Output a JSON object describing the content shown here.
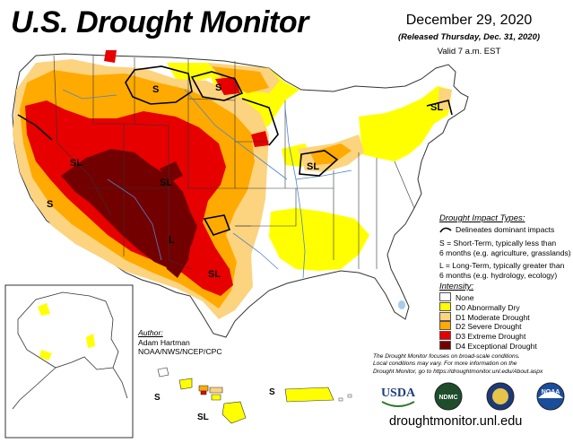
{
  "header": {
    "title": "U.S. Drought Monitor",
    "date": "December 29, 2020",
    "released": "(Released Thursday, Dec. 31, 2020)",
    "valid": "Valid 7 a.m. EST"
  },
  "map_labels": {
    "s_montana": "S",
    "s_northdakota": "S",
    "sl_west": "SL",
    "sl_colorado": "SL",
    "s_california": "S",
    "l_southwest": "L",
    "sl_texas": "SL",
    "sl_indiana": "SL",
    "sl_newengland": "SL",
    "s_hawaii": "S",
    "sl_hawaii": "SL",
    "s_puertorico": "S"
  },
  "legend": {
    "impact_heading": "Drought Impact Types:",
    "delineates": "Delineates dominant impacts",
    "short_term_1": "S = Short-Term, typically less than",
    "short_term_2": "6 months (e.g. agriculture, grasslands)",
    "long_term_1": "L = Long-Term, typically greater than",
    "long_term_2": "6 months (e.g. hydrology, ecology)",
    "intensity_heading": "Intensity:",
    "categories": [
      {
        "label": "None",
        "color": "#ffffff"
      },
      {
        "label": "D0 Abnormally Dry",
        "color": "#ffff00"
      },
      {
        "label": "D1 Moderate Drought",
        "color": "#fcd37f"
      },
      {
        "label": "D2 Severe Drought",
        "color": "#ffaa00"
      },
      {
        "label": "D3 Extreme Drought",
        "color": "#e60000"
      },
      {
        "label": "D4 Exceptional Drought",
        "color": "#730000"
      }
    ]
  },
  "author": {
    "label": "Author:",
    "name": "Adam Hartman",
    "org": "NOAA/NWS/NCEP/CPC"
  },
  "note": {
    "line1": "The Drought Monitor focuses on broad-scale conditions.",
    "line2": "Local conditions may vary. For more information on the",
    "line3": "Drought Monitor, go to https://droughtmonitor.unl.edu/About.aspx"
  },
  "logos": {
    "usda": "USDA",
    "ndmc": "NDMC",
    "noaa": "NOAA"
  },
  "footer": {
    "url": "droughtmonitor.unl.edu"
  },
  "colors": {
    "water": "#a7cbef",
    "border": "#333333"
  }
}
